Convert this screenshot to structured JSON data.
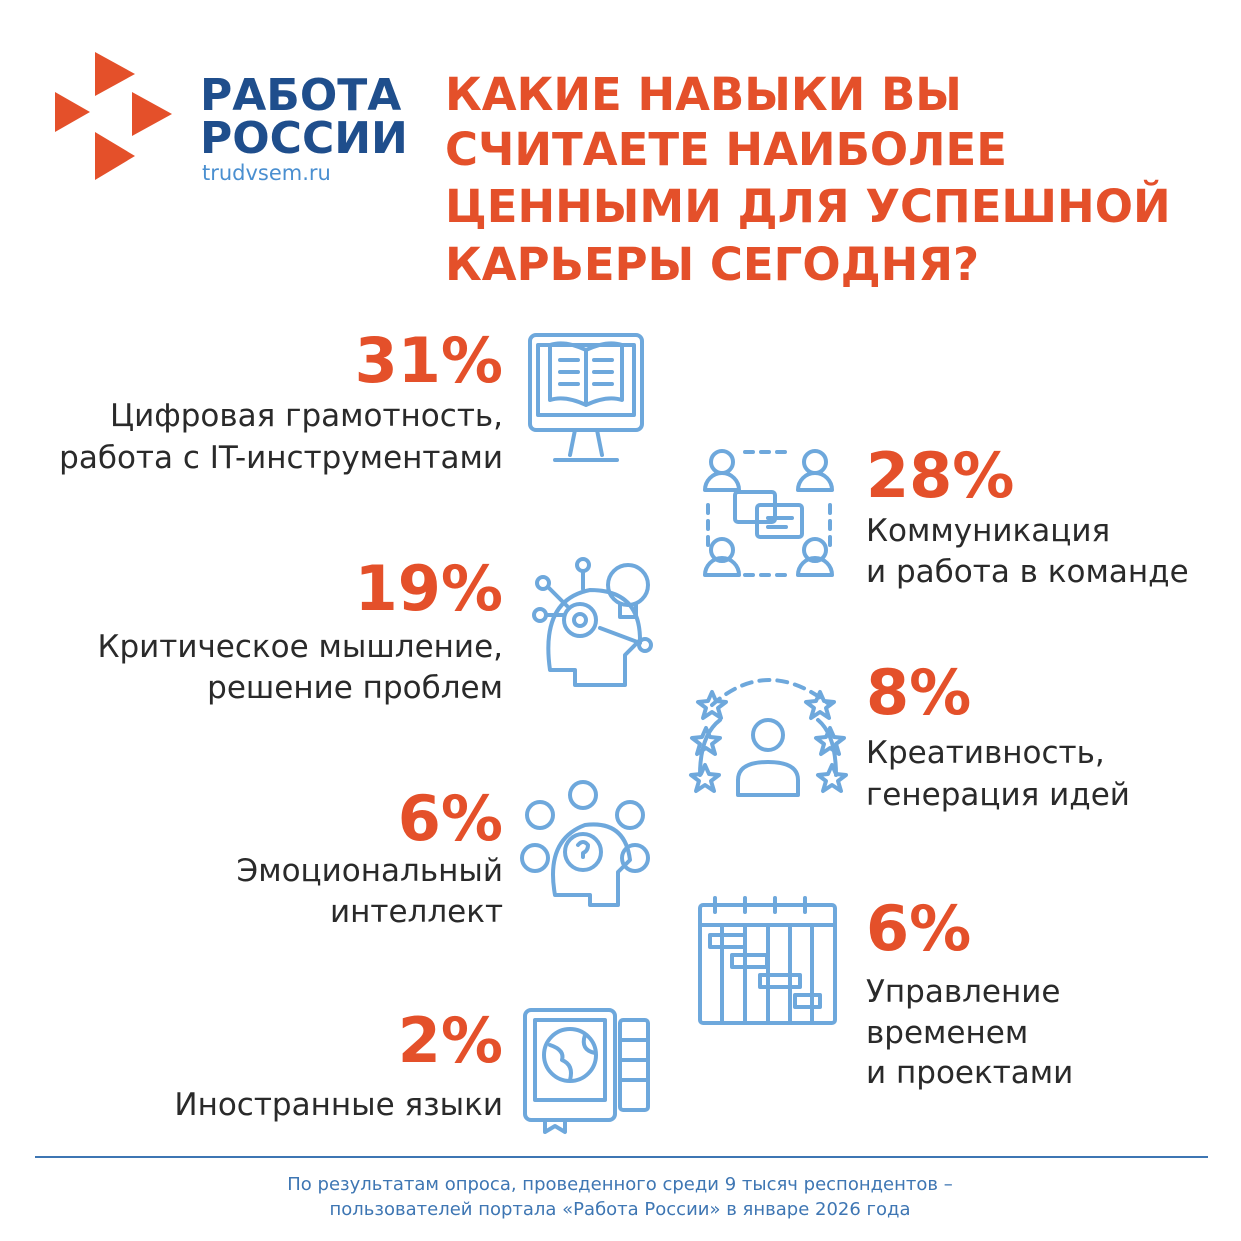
{
  "logo": {
    "name_lines": [
      "РАБОТА",
      "РОССИИ"
    ],
    "site": "trudvsem.ru"
  },
  "title_lines": [
    "КАКИЕ НАВЫКИ ВЫ",
    "СЧИТАЕТЕ НАИБОЛЕЕ",
    "ЦЕННЫМИ ДЛЯ УСПЕШНОЙ",
    "КАРЬЕРЫ СЕГОДНЯ?"
  ],
  "items": [
    {
      "percent": "31%",
      "label_lines": [
        "Цифровая грамотность,",
        "работа с IT-инструментами"
      ]
    },
    {
      "percent": "28%",
      "label_lines": [
        "Коммуникация",
        "и работа в команде"
      ]
    },
    {
      "percent": "19%",
      "label_lines": [
        "Критическое мышление,",
        "решение проблем"
      ]
    },
    {
      "percent": "8%",
      "label_lines": [
        "Креативность,",
        "генерация идей"
      ]
    },
    {
      "percent": "6%",
      "label_lines": [
        "Эмоциональный",
        "интеллект"
      ]
    },
    {
      "percent": "6%",
      "label_lines": [
        "Управление",
        "временем",
        "и проектами"
      ]
    },
    {
      "percent": "2%",
      "label_lines": [
        "Иностранные языки"
      ]
    }
  ],
  "footnote_lines": [
    "По результатам опроса, проведенного среди 9 тысяч респондентов –",
    "пользователей портала «Работа России» в январе 2026 года"
  ]
}
